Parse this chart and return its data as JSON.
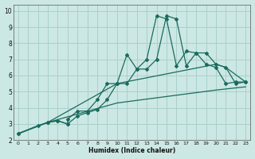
{
  "xlabel": "Humidex (Indice chaleur)",
  "bg_color": "#cce8e4",
  "grid_color": "#aacfcb",
  "line_color": "#1a6b5e",
  "xlim": [
    -0.5,
    23.5
  ],
  "ylim": [
    2,
    10.4
  ],
  "xticks": [
    0,
    1,
    2,
    3,
    4,
    5,
    6,
    7,
    8,
    9,
    10,
    11,
    12,
    13,
    14,
    15,
    16,
    17,
    18,
    19,
    20,
    21,
    22,
    23
  ],
  "yticks": [
    2,
    3,
    4,
    5,
    6,
    7,
    8,
    9,
    10
  ],
  "series": [
    {
      "x": [
        0,
        2,
        3,
        4,
        5,
        5,
        6,
        7,
        8,
        9,
        10,
        11,
        12,
        13,
        14,
        15,
        16,
        17,
        18,
        19,
        20,
        21,
        22,
        23
      ],
      "y": [
        2.4,
        2.9,
        3.1,
        3.2,
        3.0,
        3.3,
        3.8,
        3.8,
        4.5,
        5.5,
        5.5,
        7.3,
        6.4,
        7.0,
        9.7,
        9.5,
        6.6,
        7.5,
        7.4,
        6.7,
        6.5,
        5.5,
        5.6,
        5.6
      ],
      "marker": true
    },
    {
      "x": [
        0,
        3,
        4,
        5,
        6,
        7,
        8,
        9,
        10,
        11,
        12,
        13,
        14,
        15,
        16,
        17,
        18,
        19,
        20,
        21,
        22,
        23
      ],
      "y": [
        2.4,
        3.1,
        3.2,
        3.0,
        3.5,
        3.7,
        3.9,
        4.5,
        5.5,
        5.5,
        6.4,
        6.4,
        7.0,
        9.7,
        9.5,
        6.6,
        7.4,
        7.4,
        6.7,
        6.5,
        5.5,
        5.6
      ],
      "marker": true
    },
    {
      "x": [
        0,
        3,
        10,
        20,
        21,
        23
      ],
      "y": [
        2.4,
        3.1,
        5.5,
        6.7,
        6.5,
        5.6
      ],
      "marker": false
    },
    {
      "x": [
        0,
        3,
        10,
        20,
        23
      ],
      "y": [
        2.4,
        3.1,
        4.3,
        5.1,
        5.3
      ],
      "marker": false
    }
  ]
}
